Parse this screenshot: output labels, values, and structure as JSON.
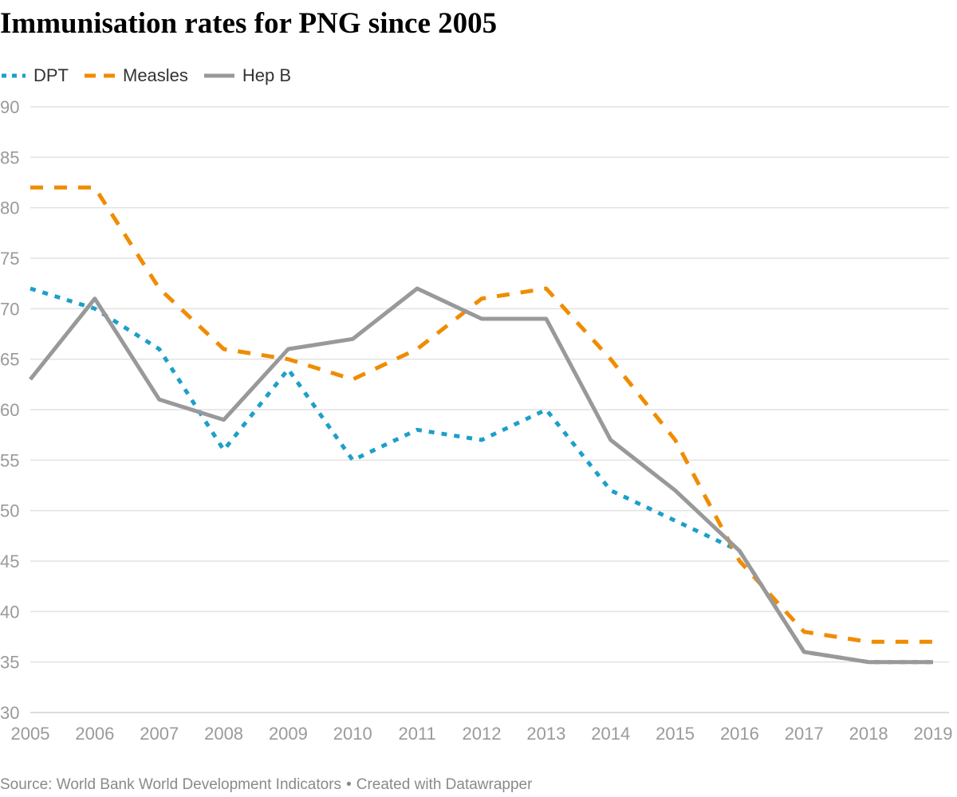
{
  "title": "Immunisation rates for PNG since 2005",
  "source": {
    "text": "Source: World Bank World Development Indicators",
    "separator": "•",
    "credit": "Created with Datawrapper"
  },
  "colors": {
    "DPT": "#1d9fc9",
    "Measles": "#f08c00",
    "Hep B": "#999999",
    "grid": "#e2e2e2",
    "tick": "#9a9a9a"
  },
  "chart_data": {
    "type": "line",
    "title": "Immunisation rates for PNG since 2005",
    "xlabel": "",
    "ylabel": "",
    "x": [
      2005,
      2006,
      2007,
      2008,
      2009,
      2010,
      2011,
      2012,
      2013,
      2014,
      2015,
      2016,
      2017,
      2018,
      2019
    ],
    "ylim": [
      30,
      90
    ],
    "yticks": [
      90,
      85,
      80,
      75,
      70,
      65,
      60,
      55,
      50,
      45,
      40,
      35,
      30
    ],
    "grid": true,
    "legend": "top-left",
    "series": [
      {
        "name": "DPT",
        "style": "dotted",
        "values": [
          72,
          70,
          66,
          56,
          64,
          55,
          58,
          57,
          60,
          52,
          49,
          46,
          36,
          35,
          35
        ]
      },
      {
        "name": "Measles",
        "style": "dashed",
        "values": [
          82,
          82,
          72,
          66,
          65,
          63,
          66,
          71,
          72,
          65,
          57,
          45,
          38,
          37,
          37
        ]
      },
      {
        "name": "Hep B",
        "style": "solid",
        "values": [
          63,
          71,
          61,
          59,
          66,
          67,
          72,
          69,
          69,
          57,
          52,
          46,
          36,
          35,
          35
        ]
      }
    ]
  }
}
